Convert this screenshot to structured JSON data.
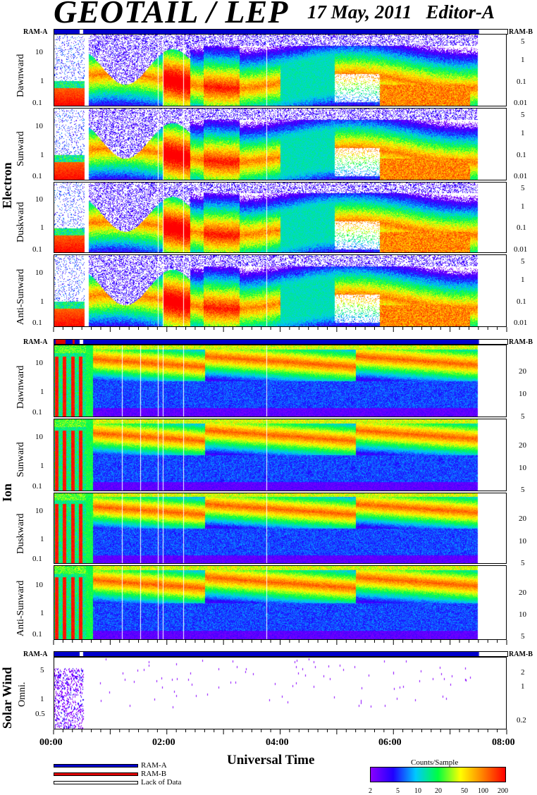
{
  "header": {
    "title": "GEOTAIL / LEP",
    "date": "17 May, 2011",
    "editor": "Editor-A"
  },
  "ram_labels": {
    "a": "RAM-A",
    "b": "RAM-B"
  },
  "groups": {
    "electron": "Electron",
    "ion": "Ion",
    "solar_wind": "Solar Wind"
  },
  "panel_labels": {
    "dawnward": "Dawnward",
    "sunward": "Sunward",
    "duskward": "Duskward",
    "anti_sunward": "Anti-Sunward",
    "omni": "Omni."
  },
  "xaxis": {
    "ticks": [
      "00:00",
      "02:00",
      "04:00",
      "06:00",
      "08:00"
    ],
    "label": "Universal Time"
  },
  "legend": {
    "ram_a": "RAM-A",
    "ram_b": "RAM-B",
    "lack": "Lack of Data",
    "ram_a_color": "#0000cc",
    "ram_b_color": "#dd0000"
  },
  "colorbar": {
    "title": "Counts/Sample",
    "ticks": [
      "2",
      "5",
      "10",
      "20",
      "50",
      "100",
      "200"
    ],
    "colors": [
      "#8a00ff",
      "#2000ff",
      "#00c8ff",
      "#00ff40",
      "#ffff00",
      "#ff8000",
      "#ff0000"
    ]
  },
  "chart_data": {
    "type": "heatmap",
    "x_range_hours": [
      0,
      8
    ],
    "data_end_hours": 7.5,
    "electron_left_ticks": [
      "10",
      "1",
      "0.1"
    ],
    "electron_right_ticks": [
      "5",
      "1",
      "0.1",
      "0.01"
    ],
    "ion_left_ticks": [
      "10",
      "1",
      "0.1"
    ],
    "ion_right_ticks": [
      "20",
      "10",
      "5"
    ],
    "solar_wind_left_ticks": [
      "5",
      "1",
      "0.5"
    ],
    "solar_wind_right_ticks": [
      "2",
      "1",
      "0.2"
    ]
  }
}
